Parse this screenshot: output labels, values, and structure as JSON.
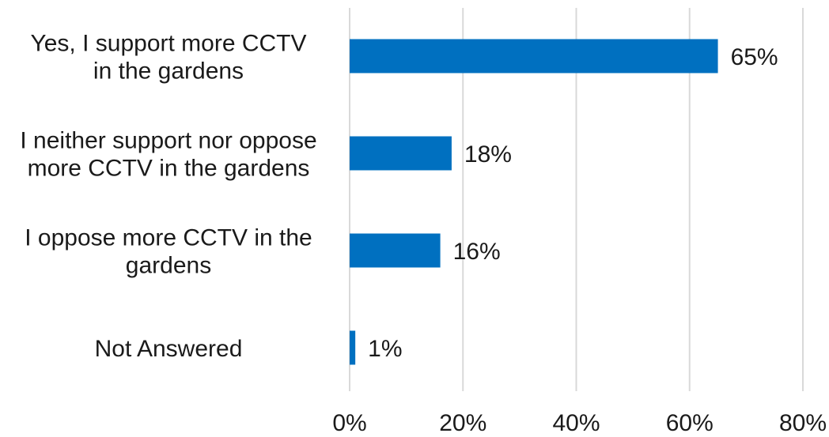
{
  "chart_data": {
    "type": "bar",
    "orientation": "horizontal",
    "categories": [
      [
        "Yes, I support more CCTV",
        "in the gardens"
      ],
      [
        "I neither support nor oppose",
        "more CCTV in the gardens"
      ],
      [
        "I oppose more CCTV in the",
        "gardens"
      ],
      [
        "Not Answered"
      ]
    ],
    "values": [
      65,
      18,
      16,
      1
    ],
    "data_labels": [
      "65%",
      "18%",
      "16%",
      "1%"
    ],
    "xlim": [
      0,
      80
    ],
    "x_ticks": [
      0,
      20,
      40,
      60,
      80
    ],
    "x_tick_labels": [
      "0%",
      "20%",
      "40%",
      "60%",
      "80%"
    ],
    "grid": "vertical",
    "legend": "none",
    "bar_color": "#0070C0",
    "grid_color": "#d9d9d9"
  }
}
